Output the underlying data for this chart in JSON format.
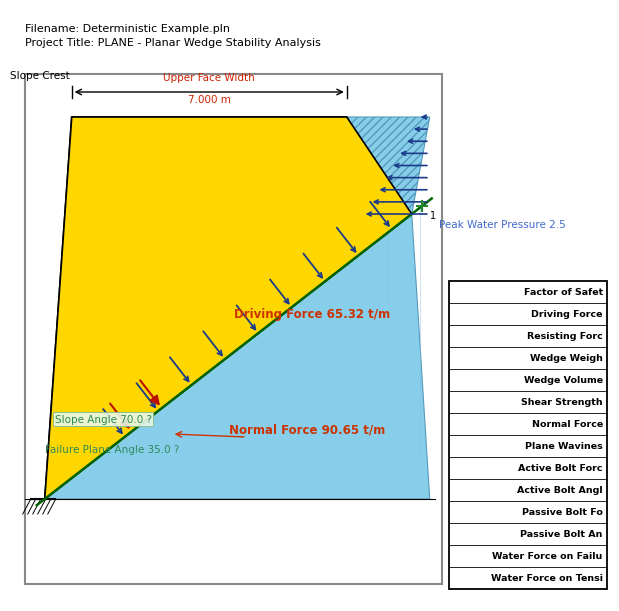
{
  "title_line1": "Filename: Deterministic Example.pln",
  "title_line2": "Project Title: PLANE - Planar Wedge Stability Analysis",
  "upper_face_width_label": "Upper Face Width",
  "upper_face_width_value": "7.000 m",
  "slope_crest_label": "Slope Crest",
  "driving_force_label": "Driving Force 65.32 t/m",
  "normal_force_label": "Normal Force 90.65 t/m",
  "slope_angle_label": "Slope Angle 70.0 ?",
  "failure_plane_label": "Failure Plane Angle 35.0 ?",
  "peak_water_label": "Peak Water Pressure 2.5",
  "table_rows": [
    "Factor of Safet",
    "Driving Force",
    "Resisting Forc",
    "Wedge Weigh",
    "Wedge Volume",
    "Shear Strength",
    "Normal Force",
    "Plane Wavines",
    "Active Bolt Forc",
    "Active Bolt Angl",
    "Passive Bolt Fo",
    "Passive Bolt An",
    "Water Force on Failu",
    "Water Force on Tensi"
  ],
  "bg_color": "#ffffff",
  "yellow_color": "#FFD700",
  "light_blue_color": "#87CEEB",
  "dark_blue_color": "#1a3a8a",
  "green_color": "#006400",
  "teal_label_color": "#2E8B57",
  "blue_label_color": "#4169CD",
  "red_label_color": "#CC2200",
  "orange_label_color": "#CC4400"
}
